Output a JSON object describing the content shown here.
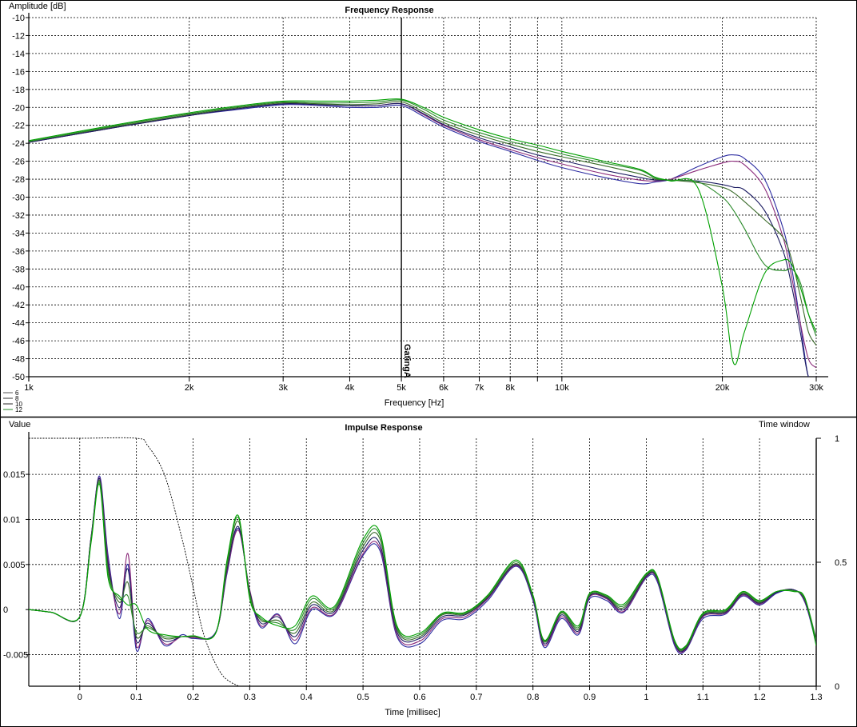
{
  "chart_data": [
    {
      "type": "line",
      "title": "Frequency Response",
      "xlabel": "Frequency [Hz]",
      "ylabel": "Amplitude [dB]",
      "xscale": "log",
      "xlim": [
        1000,
        30000
      ],
      "ylim": [
        -50,
        -10
      ],
      "grid": true,
      "x_ticks": [
        1000,
        2000,
        3000,
        4000,
        5000,
        6000,
        7000,
        8000,
        10000,
        20000,
        30000
      ],
      "x_tick_labels": [
        "1k",
        "2k",
        "3k",
        "4k",
        "5k",
        "6k",
        "7k",
        "8k",
        "10k",
        "20k",
        "30k"
      ],
      "y_ticks": [
        -10,
        -12,
        -14,
        -16,
        -18,
        -20,
        -22,
        -24,
        -26,
        -28,
        -30,
        -32,
        -34,
        -36,
        -38,
        -40,
        -42,
        -44,
        -46,
        -48,
        -50
      ],
      "marker": {
        "label": "GatingA",
        "x": 5000
      },
      "legend": {
        "position": "bottom-left",
        "entries": [
          "6",
          "8",
          "10",
          "12"
        ]
      },
      "x": [
        1000,
        1500,
        2000,
        2500,
        3000,
        3500,
        4000,
        4500,
        5000,
        5500,
        6000,
        7000,
        8000,
        9000,
        10000,
        12000,
        14000,
        15000,
        16000,
        18000,
        20000,
        21000,
        22000,
        24000,
        26000,
        27000,
        28000,
        29000,
        30000
      ],
      "series": [
        {
          "color": "#2a2aa0",
          "values": [
            -23.9,
            -22.1,
            -20.9,
            -20.2,
            -19.7,
            -19.8,
            -20.0,
            -20.0,
            -19.8,
            -21.0,
            -22.2,
            -23.8,
            -24.9,
            -25.9,
            -26.7,
            -27.8,
            -28.5,
            -28.3,
            -28.0,
            -26.6,
            -25.5,
            -25.3,
            -25.7,
            -28.0,
            -33.5,
            -38.0,
            -44.0,
            -50.0,
            -50.0
          ]
        },
        {
          "color": "#8a2a7a",
          "values": [
            -23.9,
            -22.1,
            -20.9,
            -20.1,
            -19.6,
            -19.7,
            -19.8,
            -19.8,
            -19.6,
            -20.8,
            -22.0,
            -23.6,
            -24.7,
            -25.6,
            -26.3,
            -27.4,
            -28.1,
            -28.2,
            -28.0,
            -27.0,
            -26.2,
            -26.0,
            -26.4,
            -29.0,
            -34.5,
            -39.0,
            -44.0,
            -48.0,
            -49.0
          ]
        },
        {
          "color": "#1a1a60",
          "values": [
            -23.9,
            -22.1,
            -20.9,
            -20.1,
            -19.6,
            -19.7,
            -19.8,
            -19.8,
            -19.6,
            -20.7,
            -21.9,
            -23.4,
            -24.4,
            -25.3,
            -25.9,
            -27.0,
            -27.8,
            -28.1,
            -28.1,
            -28.2,
            -28.6,
            -28.9,
            -29.2,
            -31.5,
            -36.0,
            -40.0,
            -45.0,
            -50.0,
            -50.0
          ]
        },
        {
          "color": "#3a6a2a",
          "values": [
            -23.8,
            -22.0,
            -20.8,
            -20.0,
            -19.5,
            -19.6,
            -19.7,
            -19.6,
            -19.4,
            -20.5,
            -21.7,
            -23.1,
            -24.1,
            -24.9,
            -25.5,
            -26.5,
            -27.4,
            -28.0,
            -28.1,
            -28.4,
            -28.9,
            -29.5,
            -30.5,
            -32.5,
            -34.5,
            -37.0,
            -41.0,
            -45.0,
            -46.5
          ]
        },
        {
          "color": "#2a8a2a",
          "values": [
            -23.8,
            -21.9,
            -20.7,
            -19.9,
            -19.4,
            -19.5,
            -19.5,
            -19.4,
            -19.2,
            -20.2,
            -21.4,
            -22.8,
            -23.8,
            -24.5,
            -25.2,
            -26.2,
            -27.0,
            -27.9,
            -28.1,
            -28.3,
            -30.0,
            -31.5,
            -33.5,
            -37.5,
            -38.2,
            -38.0,
            -39.5,
            -43.0,
            -45.5
          ]
        },
        {
          "color": "#00a000",
          "values": [
            -23.7,
            -21.8,
            -20.6,
            -19.8,
            -19.3,
            -19.3,
            -19.3,
            -19.2,
            -19.1,
            -20.0,
            -21.1,
            -22.5,
            -23.5,
            -24.2,
            -24.9,
            -26.0,
            -26.9,
            -27.8,
            -28.2,
            -29.0,
            -40.0,
            -48.5,
            -45.0,
            -38.5,
            -37.0,
            -37.5,
            -40.0,
            -43.0,
            -45.0
          ]
        }
      ]
    },
    {
      "type": "line",
      "title": "Impulse Response",
      "xlabel": "Time [millisec]",
      "ylabel": "Value",
      "y2label": "Time window",
      "xlim": [
        -0.09,
        1.3
      ],
      "ylim": [
        -0.0085,
        0.019
      ],
      "y2lim": [
        0,
        1
      ],
      "grid": true,
      "x_ticks": [
        0,
        0.1,
        0.2,
        0.3,
        0.4,
        0.5,
        0.6,
        0.7,
        0.8,
        0.9,
        1,
        1.1,
        1.2,
        1.3
      ],
      "x_tick_labels": [
        "0",
        "0.1",
        "0.2",
        "0.3",
        "0.4",
        "0.5",
        "0.6",
        "0.7",
        "0.8",
        "0.9",
        "1",
        "1.1",
        "1.2",
        "1.3"
      ],
      "y_ticks": [
        0.015,
        0.01,
        0.005,
        0,
        -0.005
      ],
      "y_tick_labels": [
        "0.015",
        "0.01",
        "0.005",
        "0",
        "-0.005"
      ],
      "y2_ticks": [
        1,
        0.5,
        0
      ],
      "y2_tick_labels": [
        "1",
        "0.5",
        "0"
      ],
      "window": {
        "x": [
          -0.09,
          0,
          0.1,
          0.12,
          0.15,
          0.18,
          0.2,
          0.22,
          0.25,
          0.28
        ],
        "values": [
          1,
          1,
          1,
          0.97,
          0.85,
          0.6,
          0.4,
          0.2,
          0.05,
          0
        ]
      },
      "x": [
        -0.09,
        -0.05,
        0.0,
        0.02,
        0.035,
        0.05,
        0.07,
        0.085,
        0.1,
        0.12,
        0.15,
        0.18,
        0.2,
        0.24,
        0.26,
        0.28,
        0.3,
        0.32,
        0.35,
        0.38,
        0.41,
        0.45,
        0.5,
        0.53,
        0.56,
        0.6,
        0.64,
        0.68,
        0.72,
        0.77,
        0.8,
        0.82,
        0.85,
        0.88,
        0.9,
        0.93,
        0.96,
        1.0,
        1.02,
        1.05,
        1.07,
        1.1,
        1.14,
        1.17,
        1.2,
        1.23,
        1.26,
        1.28,
        1.3
      ],
      "series": [
        {
          "color": "#2a2aa0",
          "values": [
            0,
            -0.0003,
            -0.0008,
            0.008,
            0.0148,
            0.006,
            -0.001,
            0.005,
            -0.0045,
            -0.001,
            -0.004,
            -0.0028,
            -0.0032,
            -0.0025,
            0.004,
            0.009,
            0.002,
            -0.002,
            -0.0005,
            -0.0038,
            0.0,
            -0.0005,
            0.006,
            0.0065,
            -0.003,
            -0.0038,
            -0.0012,
            -0.001,
            0.001,
            0.0048,
            0.001,
            -0.0042,
            -0.001,
            -0.0028,
            0.0012,
            0.001,
            -0.0003,
            0.0035,
            0.003,
            -0.004,
            -0.0045,
            -0.001,
            -0.0005,
            0.0015,
            0.0005,
            0.0018,
            0.0022,
            0.0008,
            -0.0038
          ]
        },
        {
          "color": "#8a2a7a",
          "values": [
            0,
            -0.0003,
            -0.0008,
            0.008,
            0.0146,
            0.0055,
            -0.0005,
            0.0062,
            -0.004,
            -0.0012,
            -0.0038,
            -0.003,
            -0.0031,
            -0.0026,
            0.0042,
            0.0088,
            0.0022,
            -0.0018,
            -0.0006,
            -0.0034,
            0.0002,
            -0.0004,
            0.0062,
            0.0068,
            -0.0028,
            -0.0035,
            -0.001,
            -0.0008,
            0.0012,
            0.0049,
            0.0012,
            -0.004,
            -0.0008,
            -0.0026,
            0.0014,
            0.0012,
            -0.0002,
            0.0036,
            0.0032,
            -0.0038,
            -0.0044,
            -0.0008,
            -0.0004,
            0.0016,
            0.0006,
            0.0019,
            0.0022,
            0.0009,
            -0.0036
          ]
        },
        {
          "color": "#1a1a60",
          "values": [
            0,
            -0.0003,
            -0.0008,
            0.008,
            0.0145,
            0.005,
            0.0002,
            0.0045,
            -0.0035,
            -0.0015,
            -0.0035,
            -0.003,
            -0.003,
            -0.0026,
            0.0045,
            0.0092,
            0.002,
            -0.0015,
            -0.0008,
            -0.003,
            0.0005,
            -0.0002,
            0.0066,
            0.0072,
            -0.0025,
            -0.0032,
            -0.0008,
            -0.0006,
            0.0013,
            0.005,
            0.0013,
            -0.0038,
            -0.0006,
            -0.0024,
            0.0015,
            0.0013,
            0.0,
            0.0037,
            0.0033,
            -0.0037,
            -0.0043,
            -0.0007,
            -0.0003,
            0.0017,
            0.0007,
            0.0019,
            0.0022,
            0.001,
            -0.0035
          ]
        },
        {
          "color": "#3a6a2a",
          "values": [
            0,
            -0.0003,
            -0.0008,
            0.0078,
            0.0143,
            0.0045,
            0.0008,
            0.003,
            -0.003,
            -0.0018,
            -0.0032,
            -0.003,
            -0.003,
            -0.0026,
            0.0048,
            0.0098,
            0.0018,
            -0.0012,
            -0.0012,
            -0.0026,
            0.0008,
            0.0,
            0.007,
            0.0078,
            -0.0022,
            -0.003,
            -0.0006,
            -0.0005,
            0.0014,
            0.0051,
            0.0014,
            -0.0036,
            -0.0004,
            -0.0022,
            0.0016,
            0.0014,
            0.0002,
            0.0038,
            0.0034,
            -0.0036,
            -0.0042,
            -0.0006,
            -0.0002,
            0.0018,
            0.0008,
            0.002,
            0.0021,
            0.0011,
            -0.0034
          ]
        },
        {
          "color": "#2a8a2a",
          "values": [
            0,
            -0.0003,
            -0.0008,
            0.0076,
            0.0141,
            0.004,
            0.0012,
            0.0015,
            -0.0025,
            -0.002,
            -0.003,
            -0.003,
            -0.0029,
            -0.0026,
            0.0052,
            0.0102,
            0.0015,
            -0.001,
            -0.0015,
            -0.0022,
            0.0012,
            0.0002,
            0.0074,
            0.0082,
            -0.002,
            -0.0028,
            -0.0005,
            -0.0004,
            0.0015,
            0.0053,
            0.0015,
            -0.0035,
            -0.0003,
            -0.002,
            0.0017,
            0.0015,
            0.0004,
            0.0039,
            0.0035,
            -0.0035,
            -0.0041,
            -0.0005,
            -0.0001,
            0.0019,
            0.0009,
            0.002,
            0.0021,
            0.0012,
            -0.0033
          ]
        },
        {
          "color": "#00a000",
          "values": [
            0,
            -0.0003,
            -0.0008,
            0.0074,
            0.0139,
            0.0035,
            0.0015,
            0.0005,
            0.0005,
            -0.0022,
            -0.0028,
            -0.003,
            -0.0029,
            -0.0026,
            0.0055,
            0.0104,
            0.0012,
            -0.0008,
            -0.0018,
            -0.0018,
            0.0015,
            0.0004,
            0.0078,
            0.0085,
            -0.0018,
            -0.0026,
            -0.0004,
            -0.0003,
            0.0016,
            0.0055,
            0.0016,
            -0.0034,
            -0.0002,
            -0.0018,
            0.0018,
            0.0016,
            0.0006,
            0.004,
            0.0036,
            -0.0034,
            -0.004,
            -0.0004,
            0.0,
            0.002,
            0.001,
            0.002,
            0.002,
            0.0013,
            -0.004
          ]
        }
      ]
    }
  ]
}
